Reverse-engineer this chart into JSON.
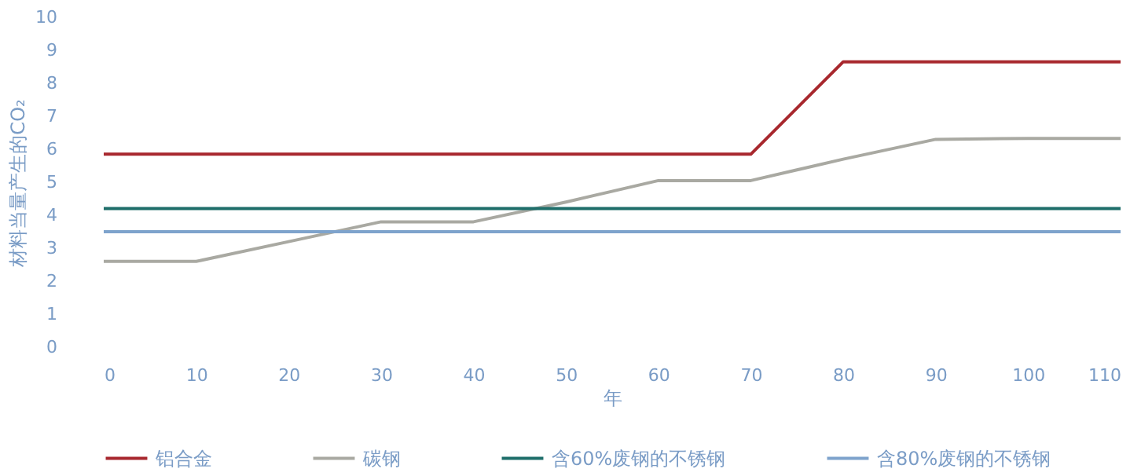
{
  "chart_data": {
    "type": "line",
    "xlabel": "年",
    "ylabel": "材料当量产生的CO₂",
    "x": [
      0,
      10,
      20,
      30,
      40,
      50,
      60,
      70,
      80,
      90,
      100,
      110
    ],
    "series": [
      {
        "name": "铝合金",
        "color": "#a8282e",
        "values": [
          5.85,
          5.85,
          5.85,
          5.85,
          5.85,
          5.85,
          5.85,
          5.85,
          8.65,
          8.65,
          8.65,
          8.65
        ]
      },
      {
        "name": "碳钢",
        "color": "#a9a9a2",
        "values": [
          2.6,
          2.6,
          3.2,
          3.8,
          3.8,
          4.4,
          5.05,
          5.05,
          5.7,
          6.3,
          6.33,
          6.33
        ]
      },
      {
        "name": "含60%废钢的不锈钢",
        "color": "#1e6e6a",
        "values": [
          4.2,
          4.2,
          4.2,
          4.2,
          4.2,
          4.2,
          4.2,
          4.2,
          4.2,
          4.2,
          4.2,
          4.2
        ]
      },
      {
        "name": "含80%废钢的不锈钢",
        "color": "#7ea3cc",
        "values": [
          3.5,
          3.5,
          3.5,
          3.5,
          3.5,
          3.5,
          3.5,
          3.5,
          3.5,
          3.5,
          3.5,
          3.5
        ]
      }
    ],
    "xlim": [
      0,
      110
    ],
    "xticks": [
      0,
      10,
      20,
      30,
      40,
      50,
      60,
      70,
      80,
      90,
      100,
      110
    ],
    "ylim": [
      0,
      10
    ],
    "yticks": [
      0,
      1,
      2,
      3,
      4,
      5,
      6,
      7,
      8,
      9,
      10
    ],
    "grid": false,
    "legend": "bottom",
    "marker": "none",
    "line_style": "solid"
  }
}
